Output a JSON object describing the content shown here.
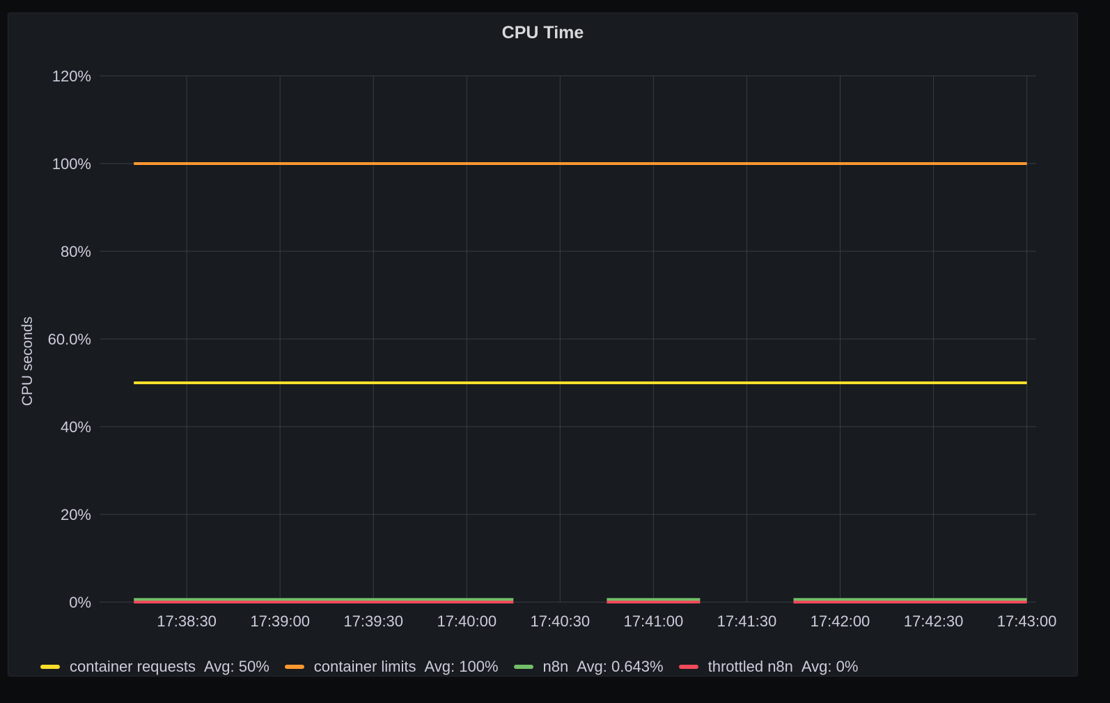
{
  "panel": {
    "title": "CPU Time"
  },
  "chart_data": {
    "type": "line",
    "title": "CPU Time",
    "ylabel": "CPU seconds",
    "xlabel": "",
    "ylim": [
      0,
      120
    ],
    "yticks": [
      {
        "value": 0,
        "label": "0%"
      },
      {
        "value": 20,
        "label": "20%"
      },
      {
        "value": 40,
        "label": "40%"
      },
      {
        "value": 60,
        "label": "60.0%"
      },
      {
        "value": 80,
        "label": "80%"
      },
      {
        "value": 100,
        "label": "100%"
      },
      {
        "value": 120,
        "label": "120%"
      }
    ],
    "xlim": [
      "17:38:02",
      "17:43:03"
    ],
    "xticks": [
      "17:38:30",
      "17:39:00",
      "17:39:30",
      "17:40:00",
      "17:40:30",
      "17:41:00",
      "17:41:30",
      "17:42:00",
      "17:42:30",
      "17:43:00"
    ],
    "grid": true,
    "legend_position": "bottom",
    "series": [
      {
        "name": "container requests",
        "color": "#fade2a",
        "avg_label": "Avg: 50%",
        "segments": [
          [
            {
              "x": "17:38:13",
              "y": 50
            },
            {
              "x": "17:43:00",
              "y": 50
            }
          ]
        ]
      },
      {
        "name": "container limits",
        "color": "#ff9830",
        "avg_label": "Avg: 100%",
        "segments": [
          [
            {
              "x": "17:38:13",
              "y": 100
            },
            {
              "x": "17:43:00",
              "y": 100
            }
          ]
        ]
      },
      {
        "name": "n8n",
        "color": "#73bf69",
        "avg_label": "Avg: 0.643%",
        "segments": [
          [
            {
              "x": "17:38:13",
              "y": 0.6
            },
            {
              "x": "17:40:15",
              "y": 0.6
            }
          ],
          [
            {
              "x": "17:40:45",
              "y": 0.6
            },
            {
              "x": "17:41:15",
              "y": 0.6
            }
          ],
          [
            {
              "x": "17:41:45",
              "y": 0.6
            },
            {
              "x": "17:43:00",
              "y": 0.6
            }
          ]
        ]
      },
      {
        "name": "throttled n8n",
        "color": "#f2495c",
        "avg_label": "Avg: 0%",
        "segments": [
          [
            {
              "x": "17:38:13",
              "y": 0
            },
            {
              "x": "17:40:15",
              "y": 0
            }
          ],
          [
            {
              "x": "17:40:45",
              "y": 0
            },
            {
              "x": "17:41:15",
              "y": 0
            }
          ],
          [
            {
              "x": "17:41:45",
              "y": 0
            },
            {
              "x": "17:43:00",
              "y": 0
            }
          ]
        ]
      }
    ]
  }
}
